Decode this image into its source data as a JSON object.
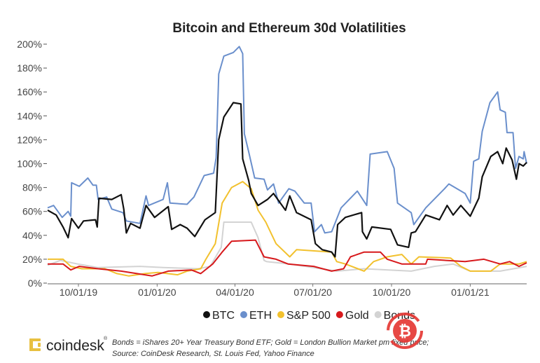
{
  "chart_data": {
    "type": "line",
    "title": "Bitcoin and Ethereum 30d Volatilities",
    "xlabel": "",
    "ylabel": "",
    "xlim": [
      "2019-08-26",
      "2021-03-08"
    ],
    "ylim": [
      0,
      200
    ],
    "yticks": [
      0,
      20,
      40,
      60,
      80,
      100,
      120,
      140,
      160,
      180,
      200
    ],
    "ytick_labels": [
      "0%",
      "20%",
      "40%",
      "60%",
      "80%",
      "100%",
      "120%",
      "140%",
      "160%",
      "180%",
      "200%"
    ],
    "xticks": [
      "2019-10-01",
      "2020-01-01",
      "2020-04-01",
      "2020-07-01",
      "2020-10-01",
      "2021-01-01"
    ],
    "xtick_labels": [
      "10/01/19",
      "01/01/20",
      "04/01/20",
      "07/01/20",
      "10/01/20",
      "01/01/21"
    ],
    "grid": false,
    "legend_position": "bottom",
    "series": [
      {
        "name": "Bonds",
        "color": "#d3d3d3",
        "points": [
          [
            "2019-08-26",
            15
          ],
          [
            "2019-09-10",
            19
          ],
          [
            "2019-09-30",
            16
          ],
          [
            "2019-10-24",
            13
          ],
          [
            "2019-12-12",
            14
          ],
          [
            "2020-01-08",
            13
          ],
          [
            "2020-02-18",
            12
          ],
          [
            "2020-03-03",
            14
          ],
          [
            "2020-03-16",
            30
          ],
          [
            "2020-03-19",
            51
          ],
          [
            "2020-04-20",
            51
          ],
          [
            "2020-04-28",
            38
          ],
          [
            "2020-05-05",
            19
          ],
          [
            "2020-05-08",
            18
          ],
          [
            "2020-06-04",
            16
          ],
          [
            "2020-07-29",
            10
          ],
          [
            "2020-08-30",
            12
          ],
          [
            "2020-10-24",
            10
          ],
          [
            "2020-11-20",
            14
          ],
          [
            "2020-12-12",
            16
          ],
          [
            "2021-01-01",
            10
          ],
          [
            "2021-02-05",
            10
          ],
          [
            "2021-03-08",
            14
          ]
        ]
      },
      {
        "name": "S&P 500",
        "color": "#f2c12e",
        "points": [
          [
            "2019-08-26",
            20
          ],
          [
            "2019-09-13",
            20
          ],
          [
            "2019-09-22",
            14
          ],
          [
            "2019-10-05",
            12
          ],
          [
            "2019-11-01",
            12
          ],
          [
            "2019-11-15",
            8
          ],
          [
            "2019-11-29",
            6
          ],
          [
            "2019-12-18",
            8
          ],
          [
            "2020-01-02",
            9
          ],
          [
            "2020-01-25",
            7
          ],
          [
            "2020-02-05",
            10
          ],
          [
            "2020-02-21",
            12
          ],
          [
            "2020-02-27",
            20
          ],
          [
            "2020-03-09",
            33
          ],
          [
            "2020-03-17",
            67
          ],
          [
            "2020-03-28",
            80
          ],
          [
            "2020-04-10",
            85
          ],
          [
            "2020-04-20",
            79
          ],
          [
            "2020-04-28",
            61
          ],
          [
            "2020-05-07",
            51
          ],
          [
            "2020-05-19",
            33
          ],
          [
            "2020-06-04",
            22
          ],
          [
            "2020-06-12",
            28
          ],
          [
            "2020-07-23",
            26
          ],
          [
            "2020-07-29",
            18
          ],
          [
            "2020-08-08",
            16
          ],
          [
            "2020-08-30",
            10
          ],
          [
            "2020-09-10",
            18
          ],
          [
            "2020-09-26",
            22
          ],
          [
            "2020-10-13",
            24
          ],
          [
            "2020-10-24",
            16
          ],
          [
            "2020-11-02",
            22
          ],
          [
            "2020-12-09",
            21
          ],
          [
            "2020-12-21",
            14
          ],
          [
            "2021-01-01",
            10
          ],
          [
            "2021-01-25",
            10
          ],
          [
            "2021-02-05",
            16
          ],
          [
            "2021-02-27",
            16
          ],
          [
            "2021-03-08",
            18
          ]
        ]
      },
      {
        "name": "Gold",
        "color": "#d7191c",
        "points": [
          [
            "2019-08-26",
            16
          ],
          [
            "2019-09-13",
            16
          ],
          [
            "2019-09-22",
            11
          ],
          [
            "2019-10-02",
            14
          ],
          [
            "2019-10-24",
            12
          ],
          [
            "2019-11-20",
            10
          ],
          [
            "2019-12-26",
            6
          ],
          [
            "2020-01-14",
            10
          ],
          [
            "2020-02-10",
            11
          ],
          [
            "2020-02-21",
            8
          ],
          [
            "2020-03-06",
            16
          ],
          [
            "2020-03-17",
            26
          ],
          [
            "2020-03-28",
            35
          ],
          [
            "2020-04-25",
            36
          ],
          [
            "2020-05-05",
            22
          ],
          [
            "2020-05-19",
            20
          ],
          [
            "2020-06-02",
            16
          ],
          [
            "2020-07-02",
            14
          ],
          [
            "2020-07-23",
            10
          ],
          [
            "2020-08-06",
            12
          ],
          [
            "2020-08-14",
            22
          ],
          [
            "2020-08-30",
            26
          ],
          [
            "2020-09-18",
            26
          ],
          [
            "2020-09-26",
            20
          ],
          [
            "2020-10-13",
            16
          ],
          [
            "2020-11-10",
            16
          ],
          [
            "2020-11-12",
            20
          ],
          [
            "2020-12-26",
            18
          ],
          [
            "2021-01-17",
            20
          ],
          [
            "2021-02-05",
            16
          ],
          [
            "2021-02-16",
            18
          ],
          [
            "2021-02-27",
            14
          ],
          [
            "2021-03-08",
            17
          ]
        ]
      },
      {
        "name": "ETH",
        "color": "#6a8fcc",
        "points": [
          [
            "2019-08-26",
            63
          ],
          [
            "2019-09-02",
            65
          ],
          [
            "2019-09-12",
            55
          ],
          [
            "2019-09-19",
            60
          ],
          [
            "2019-09-22",
            56
          ],
          [
            "2019-09-23",
            84
          ],
          [
            "2019-10-02",
            81
          ],
          [
            "2019-10-12",
            88
          ],
          [
            "2019-10-18",
            82
          ],
          [
            "2019-10-22",
            82
          ],
          [
            "2019-10-24",
            70
          ],
          [
            "2019-11-03",
            72
          ],
          [
            "2019-11-09",
            62
          ],
          [
            "2019-11-22",
            59
          ],
          [
            "2019-11-26",
            52
          ],
          [
            "2019-12-12",
            50
          ],
          [
            "2019-12-19",
            73
          ],
          [
            "2019-12-22",
            65
          ],
          [
            "2020-01-08",
            70
          ],
          [
            "2020-01-13",
            84
          ],
          [
            "2020-01-16",
            67
          ],
          [
            "2020-02-05",
            66
          ],
          [
            "2020-02-13",
            72
          ],
          [
            "2020-02-25",
            90
          ],
          [
            "2020-03-07",
            92
          ],
          [
            "2020-03-10",
            105
          ],
          [
            "2020-03-13",
            175
          ],
          [
            "2020-03-19",
            190
          ],
          [
            "2020-03-30",
            193
          ],
          [
            "2020-04-06",
            198
          ],
          [
            "2020-04-10",
            192
          ],
          [
            "2020-04-12",
            125
          ],
          [
            "2020-04-17",
            110
          ],
          [
            "2020-04-24",
            88
          ],
          [
            "2020-05-05",
            87
          ],
          [
            "2020-05-09",
            78
          ],
          [
            "2020-05-16",
            83
          ],
          [
            "2020-05-22",
            67
          ],
          [
            "2020-06-03",
            79
          ],
          [
            "2020-06-10",
            77
          ],
          [
            "2020-06-21",
            67
          ],
          [
            "2020-06-29",
            67
          ],
          [
            "2020-07-03",
            43
          ],
          [
            "2020-07-11",
            49
          ],
          [
            "2020-07-15",
            42
          ],
          [
            "2020-07-23",
            43
          ],
          [
            "2020-08-03",
            63
          ],
          [
            "2020-08-22",
            77
          ],
          [
            "2020-09-02",
            65
          ],
          [
            "2020-09-06",
            108
          ],
          [
            "2020-09-26",
            110
          ],
          [
            "2020-10-04",
            96
          ],
          [
            "2020-10-08",
            67
          ],
          [
            "2020-10-24",
            59
          ],
          [
            "2020-10-27",
            49
          ],
          [
            "2020-11-10",
            63
          ],
          [
            "2020-12-02",
            79
          ],
          [
            "2020-12-07",
            83
          ],
          [
            "2020-12-26",
            75
          ],
          [
            "2021-01-01",
            67
          ],
          [
            "2021-01-05",
            102
          ],
          [
            "2021-01-11",
            104
          ],
          [
            "2021-01-15",
            127
          ],
          [
            "2021-01-24",
            151
          ],
          [
            "2021-02-02",
            160
          ],
          [
            "2021-02-05",
            145
          ],
          [
            "2021-02-11",
            143
          ],
          [
            "2021-02-13",
            126
          ],
          [
            "2021-02-20",
            126
          ],
          [
            "2021-02-23",
            96
          ],
          [
            "2021-02-27",
            106
          ],
          [
            "2021-03-04",
            104
          ],
          [
            "2021-03-05",
            110
          ],
          [
            "2021-03-08",
            100
          ]
        ]
      },
      {
        "name": "BTC",
        "color": "#111111",
        "points": [
          [
            "2019-08-26",
            61
          ],
          [
            "2019-09-05",
            57
          ],
          [
            "2019-09-13",
            47
          ],
          [
            "2019-09-19",
            38
          ],
          [
            "2019-09-23",
            54
          ],
          [
            "2019-10-01",
            46
          ],
          [
            "2019-10-07",
            52
          ],
          [
            "2019-10-21",
            53
          ],
          [
            "2019-10-23",
            47
          ],
          [
            "2019-10-25",
            71
          ],
          [
            "2019-11-09",
            70
          ],
          [
            "2019-11-20",
            74
          ],
          [
            "2019-11-23",
            62
          ],
          [
            "2019-11-26",
            42
          ],
          [
            "2019-12-01",
            50
          ],
          [
            "2019-12-12",
            46
          ],
          [
            "2019-12-19",
            65
          ],
          [
            "2019-12-29",
            55
          ],
          [
            "2020-01-14",
            64
          ],
          [
            "2020-01-18",
            45
          ],
          [
            "2020-01-28",
            49
          ],
          [
            "2020-02-05",
            46
          ],
          [
            "2020-02-14",
            39
          ],
          [
            "2020-02-26",
            53
          ],
          [
            "2020-03-09",
            59
          ],
          [
            "2020-03-13",
            120
          ],
          [
            "2020-03-19",
            139
          ],
          [
            "2020-03-30",
            151
          ],
          [
            "2020-04-08",
            150
          ],
          [
            "2020-04-10",
            104
          ],
          [
            "2020-04-17",
            86
          ],
          [
            "2020-04-20",
            75
          ],
          [
            "2020-04-28",
            65
          ],
          [
            "2020-05-09",
            70
          ],
          [
            "2020-05-16",
            75
          ],
          [
            "2020-05-30",
            61
          ],
          [
            "2020-06-04",
            73
          ],
          [
            "2020-06-12",
            59
          ],
          [
            "2020-06-29",
            53
          ],
          [
            "2020-07-04",
            33
          ],
          [
            "2020-07-12",
            28
          ],
          [
            "2020-07-23",
            26
          ],
          [
            "2020-07-27",
            22
          ],
          [
            "2020-07-30",
            49
          ],
          [
            "2020-08-08",
            55
          ],
          [
            "2020-08-27",
            59
          ],
          [
            "2020-08-28",
            43
          ],
          [
            "2020-09-02",
            37
          ],
          [
            "2020-09-08",
            47
          ],
          [
            "2020-09-30",
            45
          ],
          [
            "2020-10-08",
            32
          ],
          [
            "2020-10-21",
            30
          ],
          [
            "2020-10-24",
            42
          ],
          [
            "2020-10-29",
            43
          ],
          [
            "2020-11-10",
            57
          ],
          [
            "2020-11-26",
            53
          ],
          [
            "2020-12-05",
            65
          ],
          [
            "2020-12-12",
            57
          ],
          [
            "2020-12-21",
            65
          ],
          [
            "2021-01-01",
            56
          ],
          [
            "2021-01-11",
            71
          ],
          [
            "2021-01-15",
            89
          ],
          [
            "2021-01-25",
            106
          ],
          [
            "2021-02-02",
            110
          ],
          [
            "2021-02-08",
            100
          ],
          [
            "2021-02-12",
            113
          ],
          [
            "2021-02-19",
            103
          ],
          [
            "2021-02-24",
            87
          ],
          [
            "2021-02-27",
            100
          ],
          [
            "2021-03-04",
            98
          ],
          [
            "2021-03-08",
            101
          ]
        ]
      }
    ],
    "legend": [
      {
        "label": "BTC",
        "color": "#111111"
      },
      {
        "label": "ETH",
        "color": "#6a8fcc"
      },
      {
        "label": "S&P 500",
        "color": "#f2c12e"
      },
      {
        "label": "Gold",
        "color": "#d7191c"
      },
      {
        "label": "Bonds",
        "color": "#d3d3d3"
      }
    ]
  },
  "footer": {
    "brand": "coindesk",
    "note_line1": "Bonds = iShares 20+ Year Treasury Bond ETF;   Gold = London Bullion Market pm fixed price;",
    "note_line2": "Source: CoinDesk Research, St. Louis Fed, Yahoo Finance"
  },
  "watermark_icon": "bitcoin-logo-icon"
}
